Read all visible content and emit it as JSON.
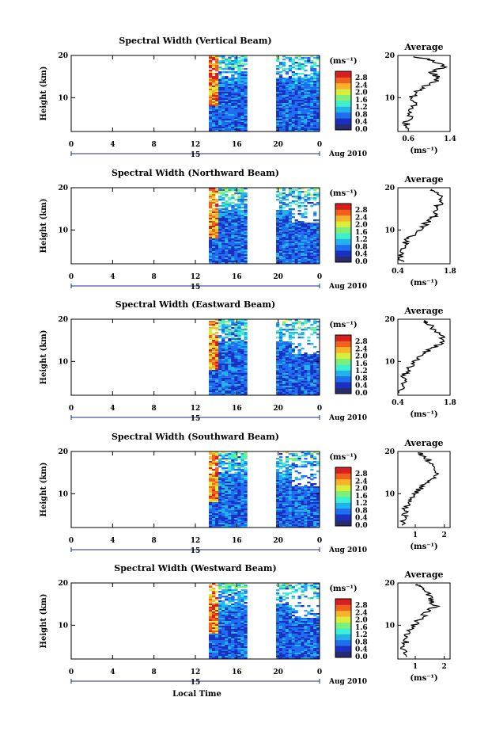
{
  "figure": {
    "shared_xlabel": "Local Time",
    "date_label": "Aug 2010",
    "colorbar_unit": "(ms⁻¹)",
    "colorbar_ticks": [
      "2.8",
      "2.4",
      "2.0",
      "1.6",
      "1.2",
      "0.8",
      "0.4",
      "0.0"
    ],
    "colormap": [
      "#2a2a6e",
      "#1a30c0",
      "#1f6df0",
      "#22b2ec",
      "#3ef0d0",
      "#7ef07a",
      "#d8ee3a",
      "#f6b32a",
      "#f0601e",
      "#d81e1e"
    ],
    "avg_title": "Average",
    "avg_unit": "(ms⁻¹)"
  },
  "chart_data": [
    {
      "type": "heatmap",
      "title": "Spectral Width (Vertical Beam)",
      "ylabel": "Height (km)",
      "xlabel": "Local Time",
      "x_ticks": [
        "0",
        "4",
        "8",
        "12",
        "16",
        "20",
        "0"
      ],
      "y_ticks": [
        "20",
        "10"
      ],
      "day_marker": "15",
      "xlim": [
        0,
        24
      ],
      "ylim": [
        2,
        20
      ],
      "data_segments_hours": [
        [
          13.3,
          17.0
        ],
        [
          19.8,
          24.0
        ]
      ],
      "colorbar_range": [
        0.0,
        2.8
      ],
      "average_profile": {
        "x_ticks": [
          "0.6",
          "1.4"
        ],
        "xlim": [
          0.4,
          1.4
        ],
        "y_ticks": [
          "20",
          "10"
        ],
        "ylim": [
          2,
          20
        ],
        "height_km": [
          2.5,
          4,
          5.5,
          7,
          8.5,
          10,
          11.5,
          13,
          14.5,
          16,
          17.5,
          19,
          19.8
        ],
        "value": [
          0.62,
          0.55,
          0.65,
          0.58,
          0.72,
          0.66,
          0.78,
          0.95,
          1.2,
          1.05,
          1.3,
          1.0,
          0.7
        ]
      }
    },
    {
      "type": "heatmap",
      "title": "Spectral Width (Northward Beam)",
      "ylabel": "Height (km)",
      "xlabel": "Local Time",
      "x_ticks": [
        "0",
        "4",
        "8",
        "12",
        "16",
        "20",
        "0"
      ],
      "y_ticks": [
        "20",
        "10"
      ],
      "day_marker": "15",
      "xlim": [
        0,
        24
      ],
      "ylim": [
        2,
        20
      ],
      "data_segments_hours": [
        [
          13.3,
          17.0
        ],
        [
          19.8,
          24.0
        ]
      ],
      "colorbar_range": [
        0.0,
        2.8
      ],
      "average_profile": {
        "x_ticks": [
          "0.4",
          "1.8"
        ],
        "xlim": [
          0.4,
          1.8
        ],
        "y_ticks": [
          "20",
          "10"
        ],
        "ylim": [
          2,
          20
        ],
        "height_km": [
          2.5,
          4,
          5.5,
          7,
          8.5,
          10,
          11.5,
          13,
          14.5,
          16,
          17.5,
          19,
          19.8
        ],
        "value": [
          0.5,
          0.45,
          0.55,
          0.6,
          0.75,
          0.95,
          1.15,
          1.35,
          1.45,
          1.5,
          1.6,
          1.45,
          1.3
        ]
      }
    },
    {
      "type": "heatmap",
      "title": "Spectral Width (Eastward Beam)",
      "ylabel": "Height (km)",
      "xlabel": "Local Time",
      "x_ticks": [
        "0",
        "4",
        "8",
        "12",
        "16",
        "20",
        "0"
      ],
      "y_ticks": [
        "20",
        "10"
      ],
      "day_marker": "15",
      "xlim": [
        0,
        24
      ],
      "ylim": [
        2,
        20
      ],
      "data_segments_hours": [
        [
          13.3,
          17.0
        ],
        [
          19.8,
          24.0
        ]
      ],
      "colorbar_range": [
        0.0,
        2.8
      ],
      "average_profile": {
        "x_ticks": [
          "0.4",
          "1.8"
        ],
        "xlim": [
          0.4,
          1.8
        ],
        "y_ticks": [
          "20",
          "10"
        ],
        "ylim": [
          2,
          20
        ],
        "height_km": [
          2.5,
          4,
          5.5,
          7,
          8.5,
          10,
          11.5,
          13,
          14.5,
          16,
          17.5,
          19,
          19.8
        ],
        "value": [
          0.5,
          0.5,
          0.55,
          0.6,
          0.7,
          0.85,
          1.05,
          1.3,
          1.6,
          1.55,
          1.4,
          1.2,
          1.0
        ]
      }
    },
    {
      "type": "heatmap",
      "title": "Spectral Width (Southward Beam)",
      "ylabel": "Height (km)",
      "xlabel": "Local Time",
      "x_ticks": [
        "0",
        "4",
        "8",
        "12",
        "16",
        "20",
        "0"
      ],
      "y_ticks": [
        "20",
        "10"
      ],
      "day_marker": "15",
      "xlim": [
        0,
        24
      ],
      "ylim": [
        2,
        20
      ],
      "data_segments_hours": [
        [
          13.3,
          17.0
        ],
        [
          19.8,
          24.0
        ]
      ],
      "colorbar_range": [
        0.0,
        2.8
      ],
      "average_profile": {
        "x_ticks": [
          "1",
          "2"
        ],
        "xlim": [
          0.4,
          2.2
        ],
        "y_ticks": [
          "20",
          "10"
        ],
        "ylim": [
          2,
          20
        ],
        "height_km": [
          2.5,
          4,
          5.5,
          7,
          8.5,
          10,
          11.5,
          13,
          14.5,
          16,
          17.5,
          19,
          19.8
        ],
        "value": [
          0.55,
          0.6,
          0.65,
          0.7,
          0.85,
          1.0,
          1.2,
          1.45,
          1.75,
          1.6,
          1.5,
          1.3,
          1.1
        ]
      }
    },
    {
      "type": "heatmap",
      "title": "Spectral Width (Westward Beam)",
      "ylabel": "Height (km)",
      "xlabel": "Local Time",
      "x_ticks": [
        "0",
        "4",
        "8",
        "12",
        "16",
        "20",
        "0"
      ],
      "y_ticks": [
        "20",
        "10"
      ],
      "day_marker": "15",
      "xlim": [
        0,
        24
      ],
      "ylim": [
        2,
        20
      ],
      "data_segments_hours": [
        [
          13.3,
          17.0
        ],
        [
          19.8,
          24.0
        ]
      ],
      "colorbar_range": [
        0.0,
        2.8
      ],
      "average_profile": {
        "x_ticks": [
          "1",
          "2"
        ],
        "xlim": [
          0.4,
          2.2
        ],
        "y_ticks": [
          "20",
          "10"
        ],
        "ylim": [
          2,
          20
        ],
        "height_km": [
          2.5,
          4,
          5.5,
          7,
          8.5,
          10,
          11.5,
          13,
          14.5,
          16,
          17.5,
          19,
          19.8
        ],
        "value": [
          0.6,
          0.6,
          0.65,
          0.7,
          0.8,
          0.95,
          1.15,
          1.4,
          1.7,
          1.55,
          1.4,
          1.25,
          1.05
        ]
      }
    }
  ]
}
